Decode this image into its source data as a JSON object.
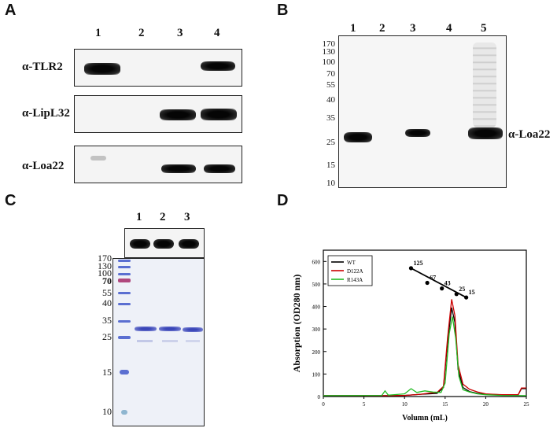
{
  "panels": {
    "a": {
      "label": "A",
      "lanes": [
        "1",
        "2",
        "3",
        "4"
      ],
      "antibodies": [
        "α-TLR2",
        "α-LipL32",
        "α-Loa22"
      ]
    },
    "b": {
      "label": "B",
      "lanes": [
        "1",
        "2",
        "3",
        "4",
        "5"
      ],
      "markers": [
        "170",
        "130",
        "100",
        "70",
        "55",
        "40",
        "35",
        "25",
        "15",
        "10"
      ],
      "antibody": "α-Loa22"
    },
    "c": {
      "label": "C",
      "lanes": [
        "1",
        "2",
        "3"
      ],
      "markers": [
        "170",
        "130",
        "100",
        "70",
        "55",
        "40",
        "35",
        "25",
        "15",
        "10"
      ]
    },
    "d": {
      "label": "D"
    }
  },
  "chart_data": {
    "type": "line",
    "xlabel": "Volumn (mL)",
    "ylabel": "Absorption (OD280 nm)",
    "xlim": [
      0,
      25
    ],
    "ylim": [
      0,
      650
    ],
    "xticks": [
      "0",
      "5",
      "10",
      "15",
      "20",
      "25"
    ],
    "yticks": [
      "0",
      "100",
      "200",
      "300",
      "400",
      "500",
      "600"
    ],
    "legend": "top-left",
    "series": [
      {
        "name": "WT",
        "color": "#000000",
        "x": [
          0,
          8,
          10,
          12,
          13,
          14,
          14.8,
          15.3,
          15.8,
          16.2,
          16.6,
          17.2,
          18,
          19,
          20,
          22,
          24,
          24.4,
          25
        ],
        "y": [
          4,
          4,
          5,
          10,
          12,
          14,
          40,
          240,
          395,
          330,
          120,
          40,
          22,
          14,
          10,
          8,
          8,
          35,
          35
        ]
      },
      {
        "name": "D122A",
        "color": "#cc0000",
        "x": [
          0,
          8,
          10,
          12,
          13,
          14,
          14.8,
          15.3,
          15.8,
          16.2,
          16.6,
          17.2,
          18,
          19,
          20,
          22,
          24,
          24.4,
          25
        ],
        "y": [
          4,
          4,
          5,
          10,
          15,
          18,
          45,
          260,
          432,
          360,
          140,
          55,
          32,
          20,
          12,
          8,
          8,
          38,
          38
        ]
      },
      {
        "name": "R143A",
        "color": "#22bb22",
        "x": [
          0,
          7.2,
          7.6,
          8,
          10,
          10.8,
          11.5,
          12.5,
          13.5,
          14.5,
          15,
          15.5,
          15.9,
          16.3,
          16.7,
          17.2,
          18,
          19,
          20,
          22,
          25
        ],
        "y": [
          4,
          5,
          25,
          6,
          12,
          35,
          18,
          25,
          20,
          18,
          60,
          280,
          355,
          260,
          90,
          30,
          20,
          12,
          8,
          5,
          4
        ]
      }
    ],
    "standards": {
      "labels": [
        "125",
        "67",
        "43",
        "25",
        "15"
      ],
      "x": [
        10.8,
        12.8,
        14.6,
        16.4,
        17.6
      ],
      "y": [
        570,
        505,
        480,
        455,
        440
      ]
    }
  }
}
